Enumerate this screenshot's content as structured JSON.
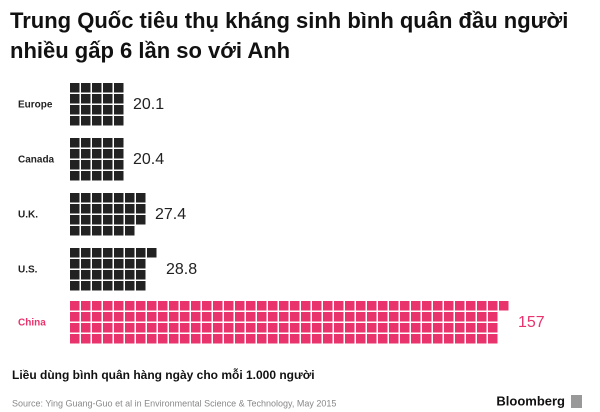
{
  "chart_data": {
    "type": "waffle",
    "title": "Trung Quốc tiêu thụ kháng sinh bình quân đầu người nhiều gấp 6 lần so với Anh",
    "categories": [
      "Europe",
      "Canada",
      "U.K.",
      "U.S.",
      "China"
    ],
    "values": [
      20.1,
      20.4,
      27.4,
      28.8,
      157
    ],
    "colors": [
      "#222222",
      "#222222",
      "#222222",
      "#222222",
      "#e8336d"
    ],
    "subtitle": "Liều dùng bình quân hàng ngày cho mỗi 1.000 người",
    "source": "Source: Ying Guang-Guo et al in Environmental Science & Technology, May 2015",
    "brand": "Bloomberg"
  }
}
